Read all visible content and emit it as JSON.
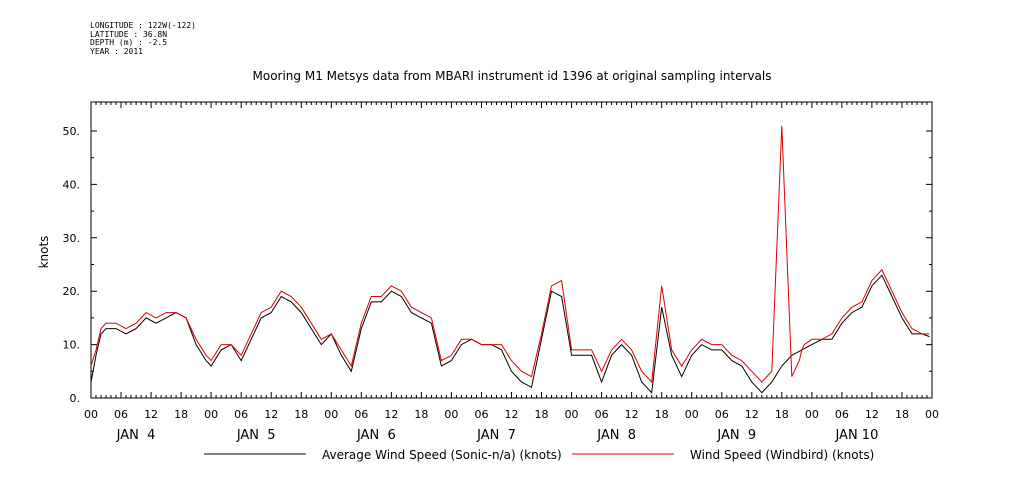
{
  "meta": {
    "longitude": "LONGITUDE : 122W(-122)",
    "latitude": "LATITUDE : 36.8N",
    "depth": "DEPTH (m) : -2.5",
    "year": "YEAR : 2011"
  },
  "chart_data": {
    "type": "line",
    "title": "Mooring M1 Metsys data from MBARI instrument id 1396 at original sampling intervals",
    "ylabel": "knots",
    "xlabel": "",
    "ylim": [
      0,
      55
    ],
    "yticks": [
      0,
      10,
      20,
      30,
      40,
      50
    ],
    "ytick_labels": [
      "0.",
      "10.",
      "20.",
      "30.",
      "40.",
      "50."
    ],
    "xlim_hours": [
      0,
      168
    ],
    "hour_tick_labels": [
      "00",
      "06",
      "12",
      "18",
      "00",
      "06",
      "12",
      "18",
      "00",
      "06",
      "12",
      "18",
      "00",
      "06",
      "12",
      "18",
      "00",
      "06",
      "12",
      "18",
      "00",
      "06",
      "12",
      "18",
      "00",
      "06",
      "12",
      "18",
      "00"
    ],
    "day_labels": [
      "JAN  4",
      "JAN  5",
      "JAN  6",
      "JAN  7",
      "JAN  8",
      "JAN  9",
      "JAN 10"
    ],
    "grid": false,
    "legend_position": "bottom",
    "series": [
      {
        "name": "Average Wind Speed (Sonic-n/a) (knots)",
        "color": "#000000",
        "x_hours": [
          0,
          1,
          2,
          3,
          5,
          7,
          9,
          11,
          13,
          15,
          17,
          19,
          21,
          23,
          24,
          26,
          28,
          30,
          32,
          34,
          36,
          38,
          40,
          42,
          44,
          46,
          48,
          50,
          52,
          54,
          56,
          58,
          60,
          62,
          64,
          66,
          68,
          70,
          72,
          74,
          76,
          78,
          80,
          82,
          84,
          86,
          88,
          90,
          92,
          94,
          96,
          98,
          100,
          102,
          104,
          106,
          108,
          110,
          112,
          114,
          116,
          118,
          120,
          122,
          124,
          126,
          128,
          130,
          132,
          134,
          136,
          138,
          140,
          142,
          144,
          146,
          148,
          150,
          152,
          154,
          156,
          158,
          160,
          162,
          164,
          166,
          167.5
        ],
        "values": [
          3,
          8,
          12,
          13,
          13,
          12,
          13,
          15,
          14,
          15,
          16,
          15,
          10,
          7,
          6,
          9,
          10,
          7,
          11,
          15,
          16,
          19,
          18,
          16,
          13,
          10,
          12,
          8,
          5,
          13,
          18,
          18,
          20,
          19,
          16,
          15,
          14,
          6,
          7,
          10,
          11,
          10,
          10,
          9,
          5,
          3,
          2,
          11,
          20,
          19,
          8,
          8,
          8,
          3,
          8,
          10,
          8,
          3,
          1,
          17,
          8,
          4,
          8,
          10,
          9,
          9,
          7,
          6,
          3,
          1,
          3,
          6,
          8,
          9,
          10,
          11,
          11,
          14,
          16,
          17,
          21,
          23,
          19,
          15,
          12,
          12,
          11.5
        ]
      },
      {
        "name": "Wind Speed (Windbird) (knots)",
        "color": "#dd0000",
        "x_hours": [
          0,
          1,
          2,
          3,
          5,
          7,
          9,
          11,
          13,
          15,
          17,
          19,
          21,
          23,
          24,
          26,
          28,
          30,
          32,
          34,
          36,
          38,
          40,
          42,
          44,
          46,
          48,
          50,
          52,
          54,
          56,
          58,
          60,
          62,
          64,
          66,
          68,
          70,
          72,
          74,
          76,
          78,
          80,
          82,
          84,
          86,
          88,
          90,
          92,
          94,
          96,
          98,
          100,
          102,
          104,
          106,
          108,
          110,
          112,
          114,
          116,
          118,
          120,
          122,
          124,
          126,
          128,
          130,
          132,
          134,
          136,
          138,
          140,
          141.5,
          142,
          142.5,
          144,
          146,
          148,
          150,
          152,
          154,
          156,
          158,
          160,
          162,
          164,
          166,
          167.5
        ],
        "values": [
          6,
          9,
          13,
          14,
          14,
          13,
          14,
          16,
          15,
          16,
          16,
          15,
          11,
          8,
          7,
          10,
          10,
          8,
          12,
          16,
          17,
          20,
          19,
          17,
          14,
          11,
          12,
          9,
          6,
          14,
          19,
          19,
          21,
          20,
          17,
          16,
          15,
          7,
          8,
          11,
          11,
          10,
          10,
          10,
          7,
          5,
          4,
          12,
          21,
          22,
          9,
          9,
          9,
          5,
          9,
          11,
          9,
          5,
          3,
          21,
          9,
          6,
          9,
          11,
          10,
          10,
          8,
          7,
          5,
          3,
          5,
          51,
          4,
          7,
          9,
          10,
          11,
          11,
          12,
          15,
          17,
          18,
          22,
          24,
          20,
          16,
          13,
          12,
          12
        ]
      }
    ]
  }
}
